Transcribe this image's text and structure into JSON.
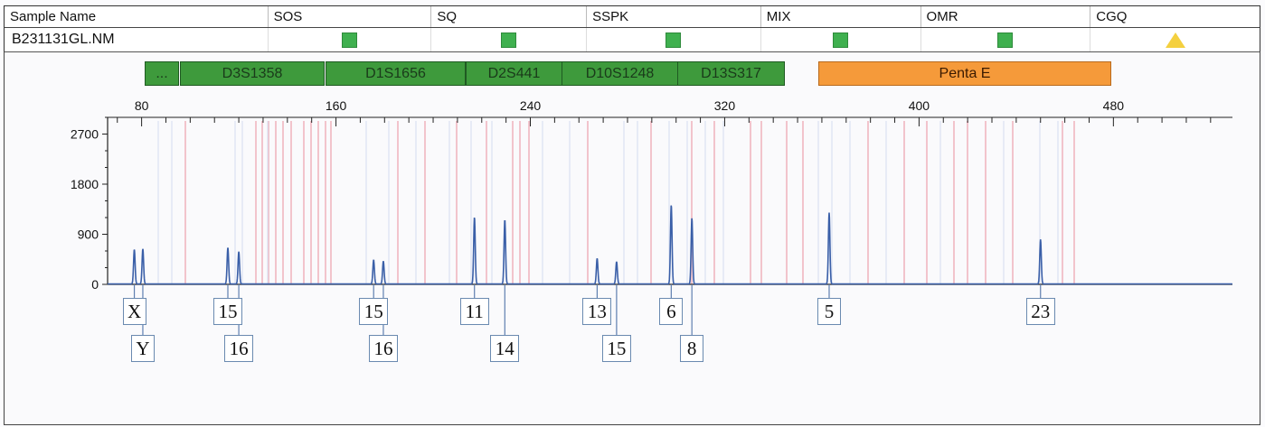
{
  "header": {
    "columns": [
      "Sample Name",
      "SOS",
      "SQ",
      "SSPK",
      "MIX",
      "OMR",
      "CGQ"
    ]
  },
  "sample": {
    "name": "B231131GL.NM",
    "flags": [
      {
        "column": "SOS",
        "icon": "green-square-icon",
        "color": "#3fb04f"
      },
      {
        "column": "SQ",
        "icon": "green-square-icon",
        "color": "#3fb04f"
      },
      {
        "column": "SSPK",
        "icon": "green-square-icon",
        "color": "#3fb04f"
      },
      {
        "column": "MIX",
        "icon": "green-square-icon",
        "color": "#3fb04f"
      },
      {
        "column": "OMR",
        "icon": "green-square-icon",
        "color": "#3fb04f"
      },
      {
        "column": "CGQ",
        "icon": "yellow-triangle-icon",
        "color": "#f4d03f"
      }
    ]
  },
  "markers": [
    {
      "label": "...",
      "color": "#3e9a3c"
    },
    {
      "label": "D3S1358",
      "color": "#3e9a3c"
    },
    {
      "label": "D1S1656",
      "color": "#3e9a3c"
    },
    {
      "label": "D2S441",
      "color": "#3e9a3c"
    },
    {
      "label": "D10S1248",
      "color": "#3e9a3c"
    },
    {
      "label": "D13S317",
      "color": "#3e9a3c"
    },
    {
      "label": "Penta E",
      "color": "#f59a3a"
    }
  ],
  "chart_data": {
    "type": "line",
    "x_ticks": [
      "80",
      "160",
      "240",
      "320",
      "400",
      "480"
    ],
    "y_ticks": [
      "2700",
      "1800",
      "900",
      "0"
    ],
    "xlim": [
      66,
      529
    ],
    "ylim": [
      0,
      3000
    ],
    "series_color": "#3a5fa8",
    "peaks": [
      {
        "x": 77,
        "height": 620,
        "allele": "X"
      },
      {
        "x": 80.5,
        "height": 630,
        "allele": "Y"
      },
      {
        "x": 115.5,
        "height": 650,
        "allele": "15"
      },
      {
        "x": 120,
        "height": 580,
        "allele": "16"
      },
      {
        "x": 175.5,
        "height": 430,
        "allele": "15"
      },
      {
        "x": 179.5,
        "height": 410,
        "allele": "16"
      },
      {
        "x": 217,
        "height": 1200,
        "allele": "11"
      },
      {
        "x": 229.5,
        "height": 1150,
        "allele": "14"
      },
      {
        "x": 267.5,
        "height": 460,
        "allele": "13"
      },
      {
        "x": 275.5,
        "height": 400,
        "allele": "15"
      },
      {
        "x": 298,
        "height": 1420,
        "allele": "6"
      },
      {
        "x": 306.5,
        "height": 1180,
        "allele": "8"
      },
      {
        "x": 363,
        "height": 1280,
        "allele": "5"
      },
      {
        "x": 450,
        "height": 800,
        "allele": "23"
      }
    ]
  }
}
